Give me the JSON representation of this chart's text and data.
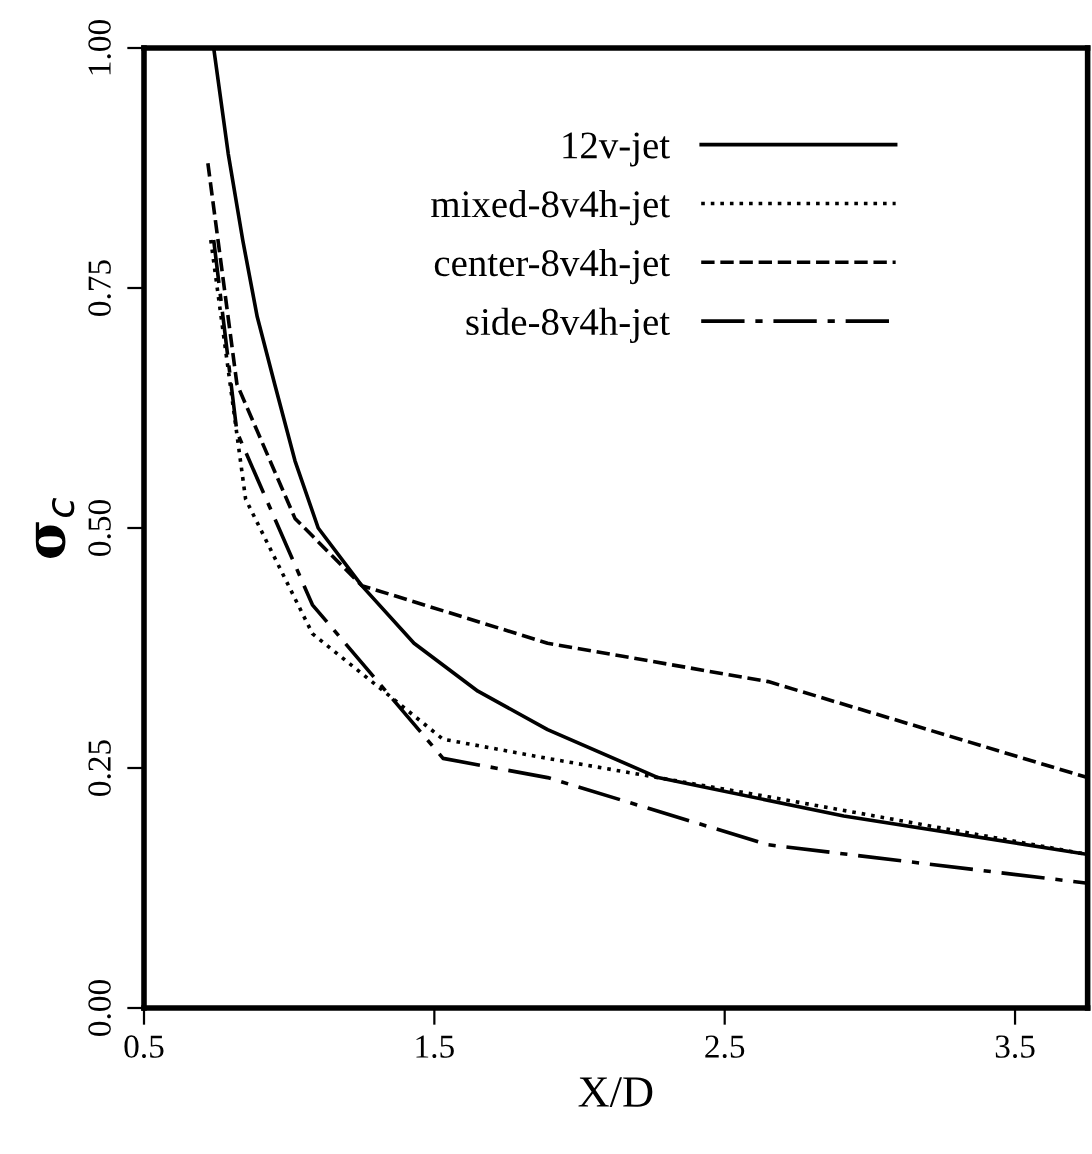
{
  "chart_data": {
    "type": "line",
    "xlabel": "X/D",
    "ylabel": "σ$_{c}$",
    "xlim": [
      0.5,
      3.75
    ],
    "ylim": [
      0,
      1
    ],
    "xticks": [
      0.5,
      1.5,
      2.5,
      3.5
    ],
    "yticks": [
      {
        "value": 0,
        "label": "0.00"
      },
      {
        "value": 0.25,
        "label": "0.25"
      },
      {
        "value": 0.5,
        "label": "0.50"
      },
      {
        "value": 0.75,
        "label": "0.75"
      },
      {
        "value": 1,
        "label": "1.00"
      }
    ],
    "grid": false,
    "legend": "top",
    "marker": "none",
    "series": [
      {
        "name": "12v-jet",
        "color": "#000000",
        "line_style": "solid",
        "x": [
          0.74,
          0.79,
          0.84,
          0.89,
          0.95,
          1.02,
          1.1,
          1.25,
          1.43,
          1.65,
          1.89,
          2.27,
          2.91,
          3.75
        ],
        "values": [
          1.0,
          0.89,
          0.8,
          0.72,
          0.65,
          0.57,
          0.5,
          0.44,
          0.38,
          0.33,
          0.29,
          0.24,
          0.2,
          0.16
        ]
      },
      {
        "name": "mixed-8v4h-jet",
        "color": "#000000",
        "line_style": "dotted",
        "x": [
          0.73,
          0.85,
          1.08,
          1.53,
          1.89,
          2.65,
          3.75
        ],
        "values": [
          0.8,
          0.53,
          0.39,
          0.28,
          0.26,
          0.22,
          0.16
        ]
      },
      {
        "name": "center-8v4h-jet",
        "color": "#000000",
        "line_style": "dashed",
        "x": [
          0.72,
          0.82,
          1.02,
          1.25,
          1.89,
          2.65,
          3.75
        ],
        "values": [
          0.88,
          0.65,
          0.51,
          0.44,
          0.38,
          0.34,
          0.24
        ]
      },
      {
        "name": "side-8v4h-jet",
        "color": "#000000",
        "line_style": "dashdot",
        "x": [
          0.74,
          0.82,
          1.08,
          1.53,
          1.89,
          2.65,
          3.75
        ],
        "values": [
          0.8,
          0.6,
          0.42,
          0.26,
          0.24,
          0.17,
          0.13
        ]
      }
    ]
  }
}
